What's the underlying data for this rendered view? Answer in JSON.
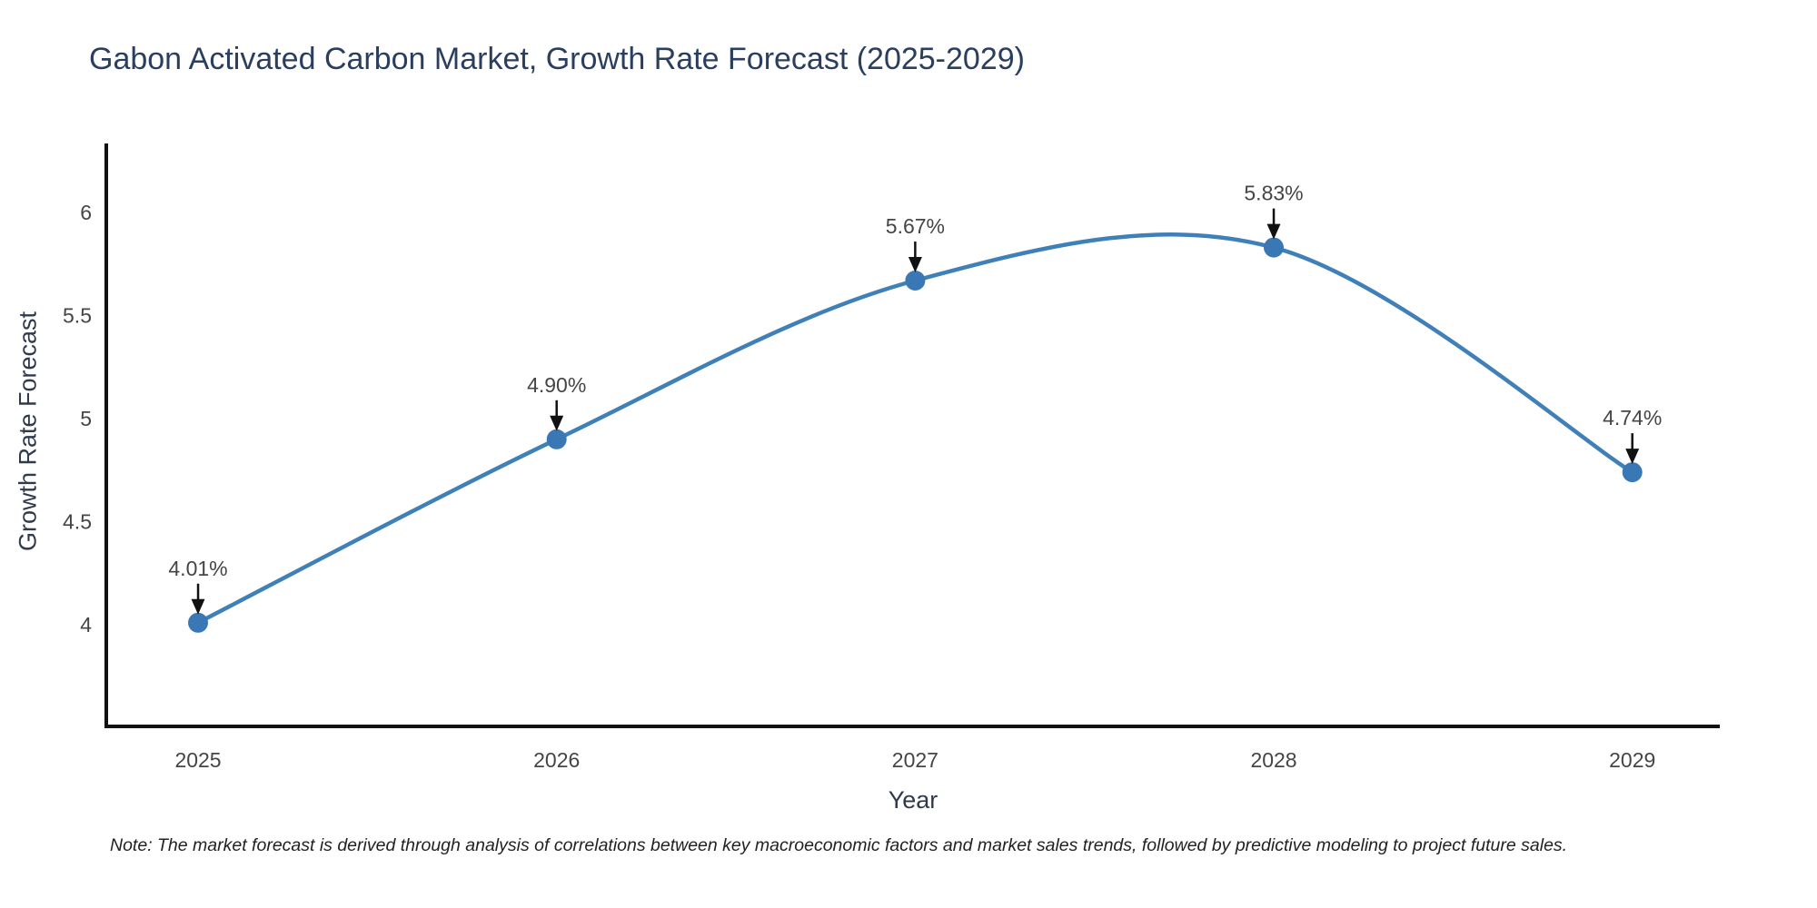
{
  "note": "Note: The market forecast is derived through analysis of correlations between key macroeconomic factors and market sales trends, followed by predictive modeling to project future sales.",
  "chart_data": {
    "type": "line",
    "title": "Gabon Activated Carbon Market, Growth Rate Forecast (2025-2029)",
    "xlabel": "Year",
    "ylabel": "Growth Rate Forecast",
    "x": [
      2025,
      2026,
      2027,
      2028,
      2029
    ],
    "y": [
      4.01,
      4.9,
      5.67,
      5.83,
      4.74
    ],
    "point_labels": [
      "4.01%",
      "4.90%",
      "5.67%",
      "5.83%",
      "4.74%"
    ],
    "x_ticks": [
      "2025",
      "2026",
      "2027",
      "2028",
      "2029"
    ],
    "y_ticks": [
      "4",
      "4.5",
      "5",
      "5.5",
      "6"
    ],
    "y_tick_values": [
      4,
      4.5,
      5,
      5.5,
      6
    ],
    "xlim": [
      2024.744,
      2029.244
    ],
    "ylim": [
      3.507,
      6.335
    ],
    "line_shape": "spline",
    "grid": false,
    "legend": "none",
    "colors": {
      "line": "#4080b8",
      "marker": "#3a78b5",
      "axis": "#111111",
      "arrow": "#111111",
      "tick_text": "#454545",
      "annotation_text": "#454545",
      "title_text": "#2a3f5f",
      "axis_title_text": "#2f3a4d",
      "note_text": "#222222"
    }
  }
}
